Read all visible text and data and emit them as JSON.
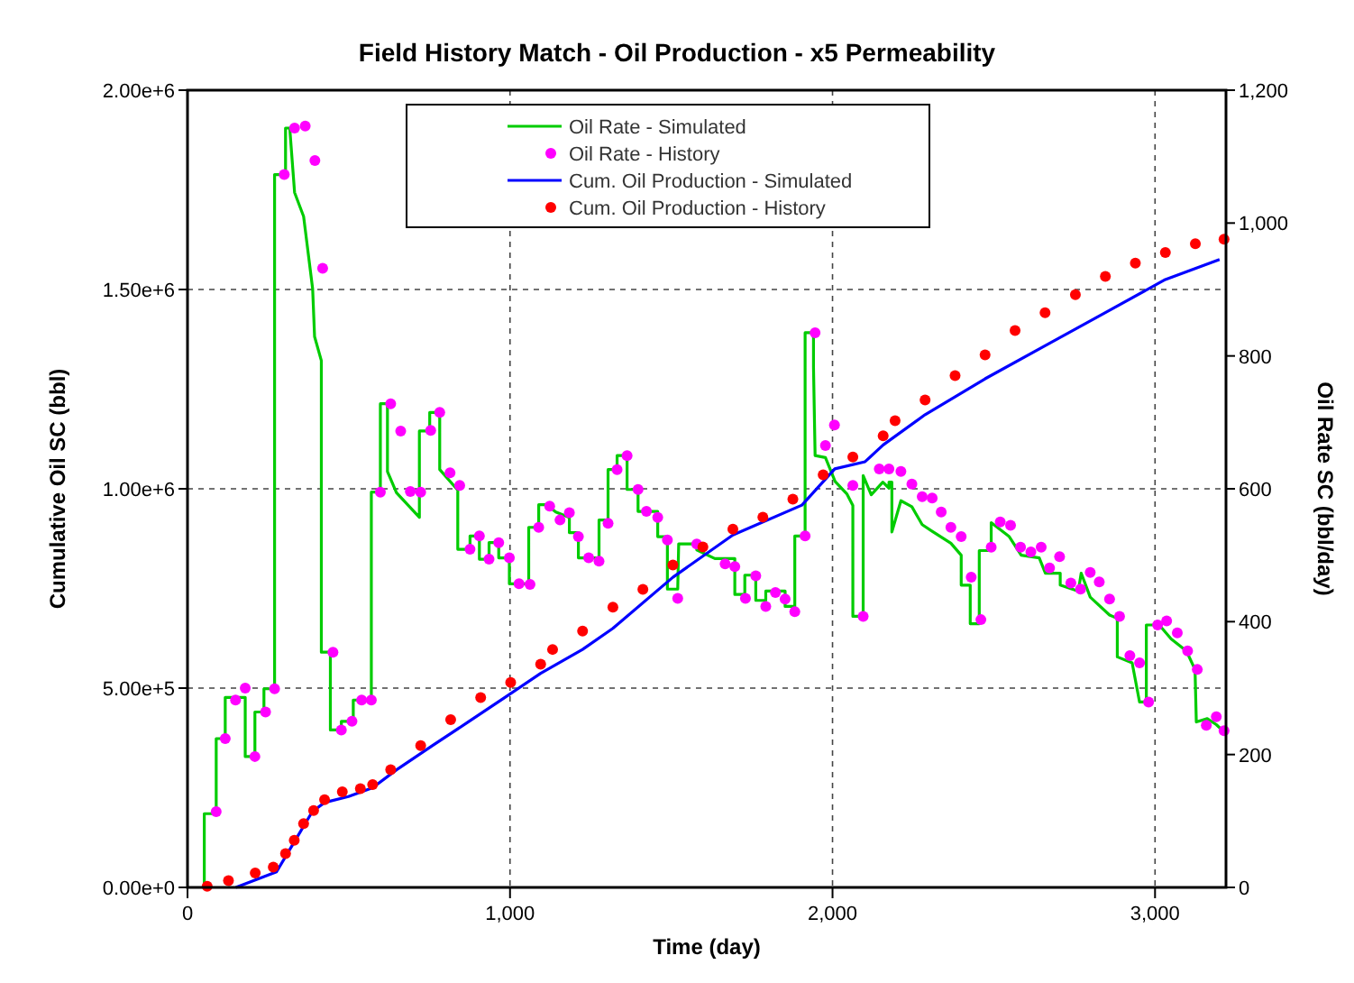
{
  "chart_data": {
    "type": "line",
    "title": "Field History Match - Oil Production - x5 Permeability",
    "xlabel": "Time (day)",
    "ylabel": "Cumulative Oil SC (bbl)",
    "y2label": "Oil Rate SC (bbl/day)",
    "xlim": [
      0,
      3220
    ],
    "xticks": [
      0,
      {
        "value": 1000,
        "label": "1,000"
      },
      {
        "value": 2000,
        "label": "2,000"
      },
      {
        "value": 3000,
        "label": "3,000"
      }
    ],
    "ylim": [
      0,
      2000000
    ],
    "yticks": [
      {
        "value": 0,
        "label": "0.00e+0"
      },
      {
        "value": 500000,
        "label": "5.00e+5"
      },
      {
        "value": 1000000,
        "label": "1.00e+6"
      },
      {
        "value": 1500000,
        "label": "1.50e+6"
      },
      {
        "value": 2000000,
        "label": "2.00e+6"
      }
    ],
    "y2lim": [
      0,
      1200
    ],
    "y2ticks": [
      0,
      200,
      400,
      600,
      800,
      {
        "value": 1000,
        "label": "1,000"
      },
      {
        "value": 1200,
        "label": "1,200"
      }
    ],
    "grid": true,
    "legend": "top",
    "series": [
      {
        "name": "Oil Rate - Simulated",
        "axis": "y2",
        "color": "#00cc00",
        "line_style": "solid",
        "marker": "none",
        "x": [
          52,
          52,
          89,
          89,
          117,
          117,
          179,
          179,
          209,
          209,
          237,
          237,
          270,
          270,
          304,
          304,
          317,
          332,
          360,
          388,
          394,
          415,
          415,
          443,
          443,
          477,
          477,
          514,
          514,
          570,
          570,
          598,
          598,
          620,
          620,
          648,
          719,
          719,
          751,
          751,
          782,
          782,
          838,
          838,
          876,
          876,
          905,
          905,
          935,
          935,
          965,
          965,
          998,
          998,
          1058,
          1058,
          1089,
          1089,
          1114,
          1142,
          1184,
          1184,
          1212,
          1212,
          1276,
          1276,
          1304,
          1304,
          1332,
          1332,
          1363,
          1363,
          1397,
          1397,
          1458,
          1458,
          1488,
          1488,
          1520,
          1523,
          1579,
          1579,
          1635,
          1697,
          1697,
          1728,
          1728,
          1762,
          1762,
          1793,
          1793,
          1853,
          1853,
          1883,
          1883,
          1915,
          1915,
          1941,
          1941,
          1946,
          1978,
          2008,
          2045,
          2063,
          2063,
          2095,
          2095,
          2120,
          2156,
          2175,
          2175,
          2184,
          2184,
          2212,
          2246,
          2278,
          2309,
          2367,
          2399,
          2399,
          2427,
          2427,
          2455,
          2455,
          2492,
          2492,
          2548,
          2585,
          2641,
          2660,
          2706,
          2706,
          2762,
          2771,
          2799,
          2859,
          2883,
          2883,
          2929,
          2952,
          2973,
          2973,
          3013,
          3050,
          3097,
          3124,
          3128,
          3162,
          3190,
          3214
        ],
        "values": [
          0,
          111,
          111,
          224,
          224,
          286,
          286,
          197,
          197,
          264,
          264,
          299,
          299,
          1073,
          1073,
          1143,
          1143,
          1046,
          1010,
          901,
          829,
          793,
          354,
          354,
          237,
          237,
          250,
          250,
          282,
          282,
          595,
          595,
          728,
          728,
          626,
          594,
          557,
          687,
          687,
          715,
          715,
          629,
          598,
          509,
          509,
          529,
          529,
          494,
          494,
          519,
          519,
          496,
          496,
          457,
          457,
          542,
          542,
          576,
          576,
          565,
          557,
          534,
          534,
          496,
          496,
          553,
          553,
          629,
          629,
          650,
          650,
          599,
          599,
          566,
          566,
          528,
          528,
          449,
          449,
          517,
          517,
          508,
          495,
          495,
          441,
          441,
          470,
          470,
          432,
          432,
          446,
          446,
          423,
          423,
          529,
          529,
          835,
          835,
          783,
          650,
          647,
          611,
          592,
          575,
          408,
          408,
          620,
          591,
          610,
          601,
          610,
          610,
          535,
          582,
          573,
          546,
          536,
          518,
          500,
          455,
          455,
          397,
          397,
          507,
          507,
          549,
          528,
          500,
          496,
          473,
          473,
          455,
          446,
          473,
          437,
          410,
          405,
          347,
          338,
          279,
          279,
          395,
          395,
          374,
          356,
          328,
          249,
          254,
          245,
          234
        ]
      },
      {
        "name": "Oil Rate - History",
        "type": "scatter",
        "axis": "y2",
        "color": "#ff00ff",
        "marker": "circle",
        "x": [
          89,
          117,
          149,
          179,
          209,
          242,
          270,
          300,
          332,
          365,
          395,
          419,
          451,
          477,
          510,
          540,
          570,
          598,
          630,
          661,
          691,
          723,
          754,
          782,
          814,
          844,
          876,
          905,
          935,
          965,
          998,
          1028,
          1062,
          1089,
          1123,
          1155,
          1184,
          1212,
          1244,
          1276,
          1304,
          1332,
          1363,
          1397,
          1423,
          1458,
          1488,
          1520,
          1579,
          1667,
          1697,
          1730,
          1762,
          1793,
          1823,
          1853,
          1883,
          1915,
          1946,
          1978,
          2006,
          2063,
          2095,
          2145,
          2175,
          2212,
          2246,
          2278,
          2309,
          2337,
          2367,
          2399,
          2430,
          2460,
          2492,
          2520,
          2552,
          2583,
          2615,
          2647,
          2673,
          2704,
          2739,
          2769,
          2799,
          2827,
          2859,
          2890,
          2922,
          2952,
          2980,
          3008,
          3036,
          3069,
          3101,
          3131,
          3159,
          3190,
          3214
        ],
        "values": [
          114,
          224,
          282,
          300,
          197,
          264,
          299,
          1073,
          1143,
          1146,
          1094,
          932,
          354,
          237,
          250,
          282,
          282,
          595,
          728,
          687,
          596,
          595,
          688,
          715,
          624,
          605,
          509,
          529,
          494,
          519,
          496,
          457,
          456,
          542,
          574,
          553,
          564,
          528,
          496,
          491,
          548,
          629,
          650,
          599,
          566,
          557,
          523,
          435,
          517,
          487,
          483,
          435,
          469,
          423,
          444,
          434,
          415,
          529,
          835,
          665,
          696,
          605,
          408,
          630,
          630,
          626,
          607,
          588,
          586,
          565,
          542,
          528,
          467,
          403,
          512,
          550,
          545,
          512,
          505,
          512,
          481,
          498,
          458,
          449,
          474,
          460,
          434,
          408,
          349,
          338,
          279,
          395,
          401,
          383,
          356,
          328,
          244,
          257,
          236
        ]
      },
      {
        "name": "Cum. Oil Production - Simulated",
        "color": "#0000ff",
        "line_style": "solid",
        "marker": "none",
        "x": [
          150,
          276,
          331,
          387,
          425,
          499,
          574,
          648,
          760,
          872,
          983,
          1095,
          1225,
          1319,
          1505,
          1691,
          1905,
          2007,
          2101,
          2157,
          2287,
          2473,
          2659,
          2846,
          3032,
          3200
        ],
        "values": [
          0,
          39000,
          114000,
          190000,
          213000,
          228000,
          250000,
          295000,
          356000,
          416000,
          476000,
          537000,
          597000,
          650000,
          778000,
          884000,
          959000,
          1050000,
          1068000,
          1110000,
          1186000,
          1276000,
          1359000,
          1442000,
          1525000,
          1575000
        ]
      },
      {
        "name": "Cum. Oil Production - History",
        "type": "scatter",
        "color": "#ff0000",
        "marker": "circle",
        "x": [
          61,
          127,
          210,
          266,
          304,
          331,
          360,
          391,
          425,
          480,
          536,
          574,
          630,
          723,
          816,
          909,
          1002,
          1095,
          1132,
          1225,
          1319,
          1412,
          1505,
          1598,
          1691,
          1784,
          1877,
          1971,
          2063,
          2157,
          2194,
          2287,
          2380,
          2473,
          2566,
          2659,
          2753,
          2846,
          2939,
          3032,
          3125,
          3214
        ],
        "values": [
          3000,
          17000,
          36000,
          51000,
          85000,
          118000,
          160000,
          193000,
          220000,
          240000,
          248000,
          258000,
          295000,
          356000,
          421000,
          476000,
          514000,
          560000,
          597000,
          643000,
          703000,
          748000,
          809000,
          854000,
          899000,
          929000,
          974000,
          1035000,
          1080000,
          1133000,
          1171000,
          1223000,
          1284000,
          1336000,
          1397000,
          1442000,
          1487000,
          1533000,
          1566000,
          1593000,
          1615000,
          1626000
        ]
      }
    ]
  }
}
